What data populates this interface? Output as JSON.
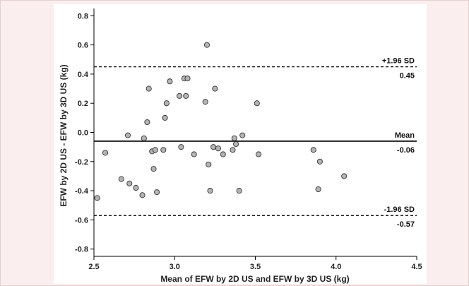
{
  "chart_data": {
    "type": "scatter",
    "title": "",
    "xlabel": "Mean of EFW by 2D US and EFW by 3D US (kg)",
    "ylabel": "EFW by 2D US - EFW by 3D US (kg)",
    "xlim": [
      2.5,
      4.5
    ],
    "ylim": [
      -0.85,
      0.85
    ],
    "x_ticks": [
      2.5,
      3.0,
      3.5,
      4.0,
      4.5
    ],
    "x_tick_labels": [
      "2.5",
      "3.0",
      "3.5",
      "4.0",
      "4.5"
    ],
    "y_ticks": [
      0.8,
      0.6,
      0.4,
      0.2,
      0.0,
      -0.2,
      -0.4,
      -0.6,
      -0.8
    ],
    "y_tick_labels": [
      "0.8",
      "0.6",
      "0.4",
      "0.2",
      "0.0",
      "-0.2",
      "-0.4",
      "-0.6",
      "-0.8"
    ],
    "grid": false,
    "reference_lines": [
      {
        "label": "+1.96 SD",
        "value_label": "0.45",
        "y": 0.45,
        "style": "dashed"
      },
      {
        "label": "Mean",
        "value_label": "-0.06",
        "y": -0.06,
        "style": "solid"
      },
      {
        "label": "-1.96 SD",
        "value_label": "-0.57",
        "y": -0.57,
        "style": "dashed"
      }
    ],
    "points": [
      [
        2.52,
        -0.45
      ],
      [
        2.57,
        -0.14
      ],
      [
        2.67,
        -0.32
      ],
      [
        2.71,
        -0.02
      ],
      [
        2.72,
        -0.35
      ],
      [
        2.76,
        -0.38
      ],
      [
        2.8,
        -0.43
      ],
      [
        2.81,
        -0.04
      ],
      [
        2.83,
        0.07
      ],
      [
        2.84,
        0.3
      ],
      [
        2.86,
        -0.13
      ],
      [
        2.87,
        -0.25
      ],
      [
        2.88,
        -0.12
      ],
      [
        2.89,
        -0.41
      ],
      [
        2.93,
        -0.12
      ],
      [
        2.94,
        0.1
      ],
      [
        2.95,
        0.2
      ],
      [
        2.97,
        0.35
      ],
      [
        3.03,
        0.25
      ],
      [
        3.04,
        -0.1
      ],
      [
        3.06,
        0.37
      ],
      [
        3.07,
        0.25
      ],
      [
        3.08,
        0.37
      ],
      [
        3.12,
        -0.15
      ],
      [
        3.19,
        0.21
      ],
      [
        3.2,
        0.6
      ],
      [
        3.21,
        -0.22
      ],
      [
        3.22,
        -0.4
      ],
      [
        3.24,
        -0.1
      ],
      [
        3.25,
        0.3
      ],
      [
        3.27,
        -0.11
      ],
      [
        3.3,
        -0.15
      ],
      [
        3.36,
        -0.12
      ],
      [
        3.37,
        -0.04
      ],
      [
        3.38,
        -0.08
      ],
      [
        3.4,
        -0.4
      ],
      [
        3.42,
        -0.02
      ],
      [
        3.51,
        0.2
      ],
      [
        3.52,
        -0.15
      ],
      [
        3.86,
        -0.12
      ],
      [
        3.89,
        -0.39
      ],
      [
        3.9,
        -0.2
      ],
      [
        4.05,
        -0.3
      ]
    ]
  }
}
